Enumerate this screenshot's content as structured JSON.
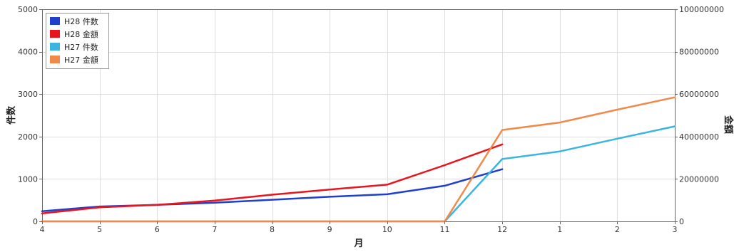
{
  "chart_data": {
    "type": "line",
    "title": "",
    "xlabel": "月",
    "ylabel": "件数",
    "y2label": "金額",
    "categories": [
      "4",
      "5",
      "6",
      "7",
      "8",
      "9",
      "10",
      "11",
      "12",
      "1",
      "2",
      "3"
    ],
    "ylim": [
      0,
      5000
    ],
    "y2lim": [
      0,
      100000000
    ],
    "yticks": [
      "0",
      "1000",
      "2000",
      "3000",
      "4000",
      "5000"
    ],
    "y2ticks": [
      "0",
      "20000000",
      "40000000",
      "60000000",
      "80000000",
      "100000000"
    ],
    "grid": true,
    "legend_position": "top-left",
    "series": [
      {
        "name": "H28 件数",
        "axis": "left",
        "color": "#1f3fcc",
        "values": [
          240,
          350,
          390,
          440,
          510,
          580,
          640,
          840,
          1230,
          null,
          null,
          null
        ]
      },
      {
        "name": "H28 金額",
        "axis": "right",
        "color": "#e8141e",
        "values": [
          3800000,
          6600000,
          7800000,
          9800000,
          12600000,
          15000000,
          17300000,
          26500000,
          36300000,
          null,
          null,
          null
        ]
      },
      {
        "name": "H27 件数",
        "axis": "left",
        "color": "#3bb5e0",
        "values": [
          0,
          0,
          0,
          0,
          0,
          0,
          0,
          0,
          1470,
          1650,
          1950,
          2240
        ]
      },
      {
        "name": "H27 金額",
        "axis": "right",
        "color": "#f08a4b",
        "values": [
          0,
          0,
          0,
          0,
          0,
          0,
          0,
          0,
          43100000,
          46600000,
          52700000,
          58500000
        ]
      }
    ]
  }
}
